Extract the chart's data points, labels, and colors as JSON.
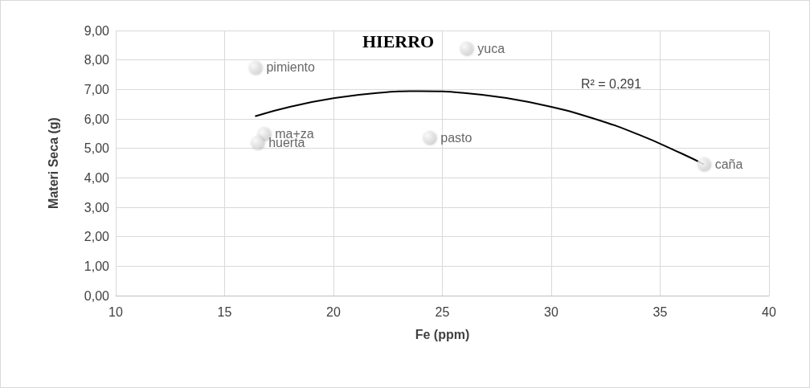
{
  "chart_data": {
    "type": "scatter",
    "title": "HIERRO",
    "xlabel": "Fe (ppm)",
    "ylabel": "Materi Seca (g)",
    "xlim": [
      10,
      40
    ],
    "xticks": [
      10,
      15,
      20,
      25,
      30,
      35,
      40
    ],
    "ylim": [
      0,
      9
    ],
    "yticks": [
      {
        "value": 0,
        "label": "0,00"
      },
      {
        "value": 1,
        "label": "1,00"
      },
      {
        "value": 2,
        "label": "2,00"
      },
      {
        "value": 3,
        "label": "3,00"
      },
      {
        "value": 4,
        "label": "4,00"
      },
      {
        "value": 5,
        "label": "5,00"
      },
      {
        "value": 6,
        "label": "6,00"
      },
      {
        "value": 7,
        "label": "7,00"
      },
      {
        "value": 8,
        "label": "8,00"
      },
      {
        "value": 9,
        "label": "9,00"
      }
    ],
    "grid": true,
    "marker": "circle",
    "series": [
      {
        "color": "#d0d0d0",
        "x": [
          16.4,
          26.1,
          16.8,
          16.5,
          24.4,
          37.0
        ],
        "values": [
          7.75,
          8.4,
          5.5,
          5.2,
          5.37,
          4.47
        ],
        "value_labels": [
          "pimiento",
          "yuca",
          "ma+za",
          "huerta",
          "pasto",
          "caña"
        ]
      },
      {
        "type": "line",
        "color": "#000000",
        "marker": "none",
        "x": [
          16.4,
          18,
          20,
          22,
          24,
          26,
          28,
          30,
          32,
          34,
          36,
          37
        ],
        "values": [
          6.09,
          6.41,
          6.7,
          6.88,
          6.94,
          6.88,
          6.7,
          6.41,
          6.0,
          5.47,
          4.82,
          4.46
        ]
      }
    ],
    "annotations": [
      "R² = 0,291"
    ]
  }
}
